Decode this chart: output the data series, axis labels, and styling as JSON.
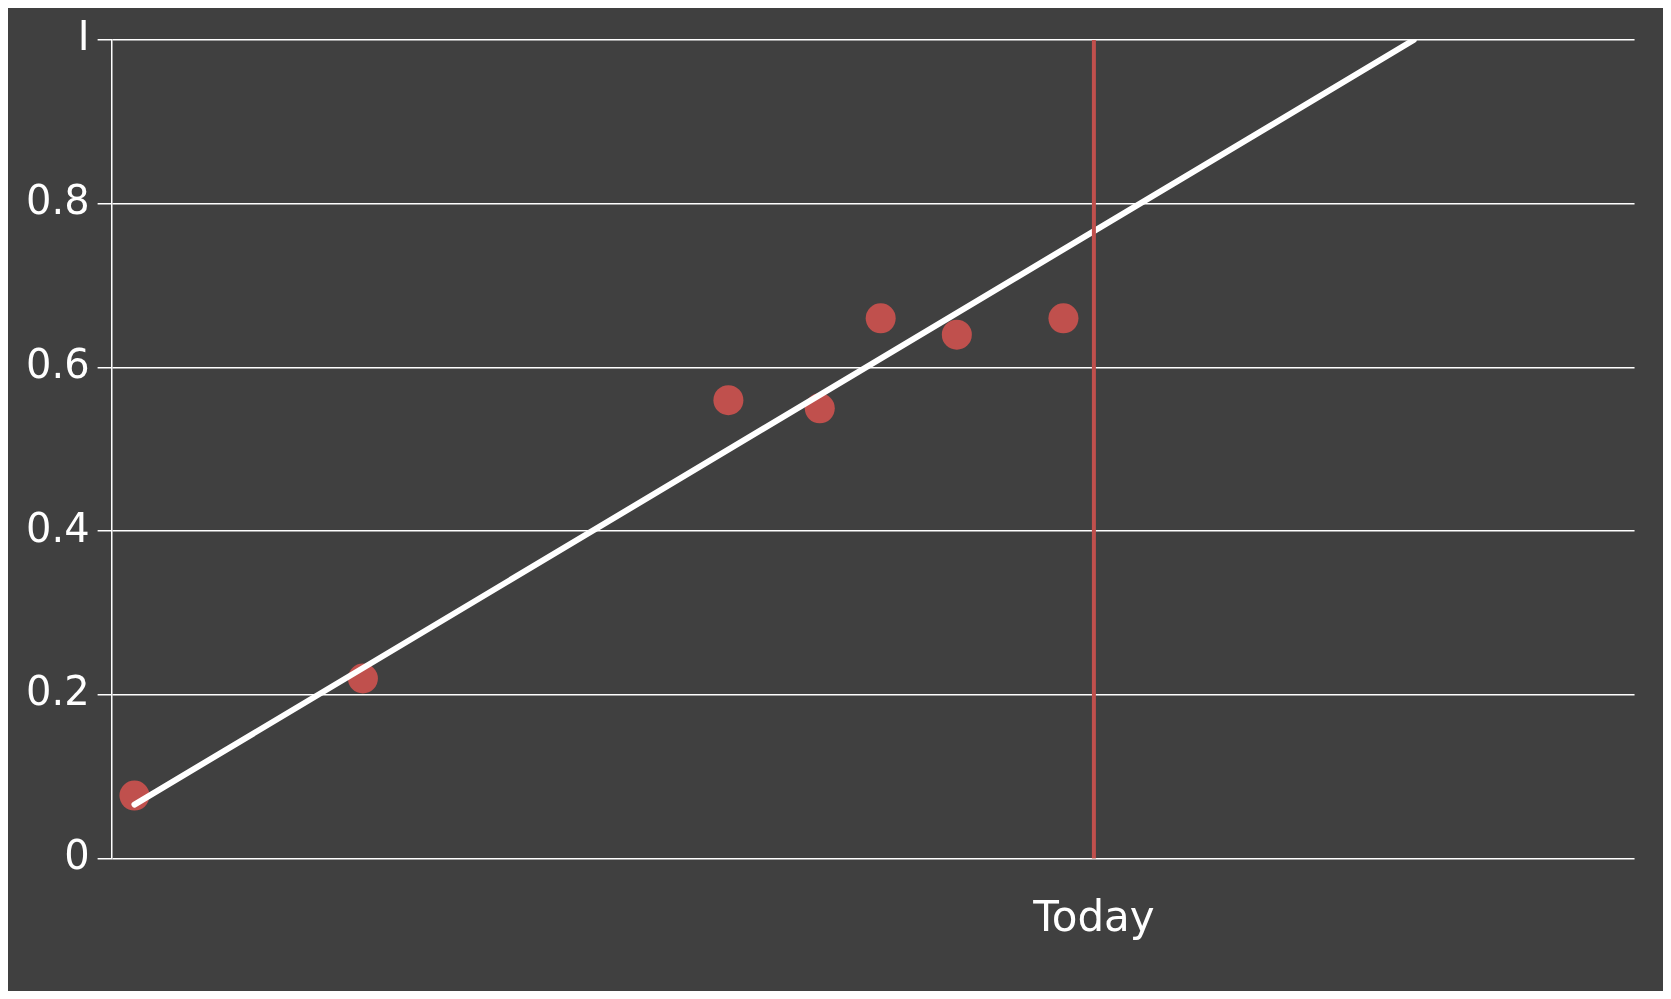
{
  "chart_data": {
    "type": "scatter",
    "ylim": [
      0,
      1
    ],
    "yticks": [
      0,
      0.2,
      0.4,
      0.6,
      0.8,
      {
        "value": 1,
        "label": "I"
      }
    ],
    "grid": "y",
    "legend": false,
    "marker": "circle",
    "categories": [
      null,
      null,
      null,
      null,
      null,
      null,
      null,
      null,
      null,
      null,
      null,
      null,
      null,
      null,
      null,
      null,
      null,
      null,
      null,
      null,
      null,
      null,
      null,
      null,
      null,
      null,
      null,
      null,
      null,
      null,
      null,
      null,
      null,
      null,
      null,
      null,
      null,
      null,
      null,
      null,
      null,
      null,
      null,
      null,
      null,
      null,
      null,
      null,
      null,
      null,
      null,
      null,
      null,
      null,
      null,
      null,
      null,
      null,
      null,
      null,
      null,
      null,
      null,
      null,
      "Today",
      null,
      null,
      null,
      null,
      null,
      null,
      null,
      null,
      null,
      null,
      null,
      null,
      null,
      null,
      null,
      null,
      null,
      null,
      null,
      null,
      null,
      null,
      null,
      null,
      null,
      null,
      null,
      null,
      null,
      null,
      null,
      null,
      null,
      null,
      null
    ],
    "series": [
      {
        "color": "#c0504d",
        "values": [
          null,
          0.077,
          null,
          null,
          null,
          null,
          null,
          null,
          null,
          null,
          null,
          null,
          null,
          null,
          null,
          null,
          0.22,
          null,
          null,
          null,
          null,
          null,
          null,
          null,
          null,
          null,
          null,
          null,
          null,
          null,
          null,
          null,
          null,
          null,
          null,
          null,
          null,
          null,
          null,
          null,
          0.56,
          null,
          null,
          null,
          null,
          null,
          0.55,
          null,
          null,
          null,
          0.66,
          null,
          null,
          null,
          null,
          0.64,
          null,
          null,
          null,
          null,
          null,
          null,
          0.66,
          null,
          null,
          null,
          null,
          null,
          null,
          null,
          null,
          null,
          null,
          null,
          null,
          null,
          null,
          null,
          null,
          null,
          null,
          null,
          null,
          null,
          null,
          null,
          null,
          null,
          null,
          null,
          null,
          null,
          null,
          null,
          null,
          null,
          null,
          null,
          null,
          null
        ]
      },
      {
        "type": "line",
        "color": "#ffffff",
        "marker": "none",
        "line_style": "solid",
        "values": [
          null,
          0.066,
          null,
          null,
          null,
          null,
          null,
          null,
          null,
          null,
          null,
          null,
          null,
          null,
          null,
          null,
          null,
          null,
          null,
          null,
          null,
          null,
          null,
          null,
          null,
          null,
          null,
          null,
          null,
          null,
          null,
          null,
          null,
          null,
          null,
          null,
          null,
          null,
          null,
          null,
          null,
          null,
          null,
          null,
          null,
          null,
          null,
          null,
          null,
          null,
          null,
          null,
          null,
          null,
          null,
          null,
          null,
          null,
          null,
          null,
          null,
          null,
          null,
          null,
          null,
          null,
          null,
          null,
          null,
          null,
          null,
          null,
          null,
          null,
          null,
          null,
          null,
          null,
          null,
          null,
          null,
          null,
          null,
          null,
          null,
          1,
          null,
          null,
          null,
          null,
          null,
          null,
          null,
          null,
          null,
          null,
          null,
          null,
          null,
          null
        ]
      }
    ],
    "ref_lines": [
      {
        "axis": "x",
        "value": "Today",
        "color": "#c0504d",
        "line_style": "solid"
      }
    ]
  }
}
